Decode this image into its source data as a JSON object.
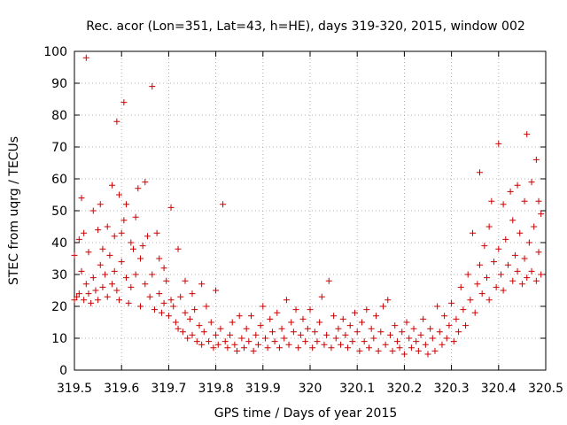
{
  "chart_data": {
    "type": "scatter",
    "title": "Rec. acor (Lon=351, Lat=43, h=HE), days 319-320, 2015, window 002",
    "xlabel": "GPS time / Days of year 2015",
    "ylabel": "STEC from uqrg / TECUs",
    "xlim": [
      319.5,
      320.5
    ],
    "ylim": [
      0,
      100
    ],
    "x_ticks": [
      "319.5",
      "319.6",
      "319.7",
      "319.8",
      "319.9",
      "320",
      "320.1",
      "320.2",
      "320.3",
      "320.4",
      "320.5"
    ],
    "y_ticks": [
      "0",
      "10",
      "20",
      "30",
      "40",
      "50",
      "60",
      "70",
      "80",
      "90",
      "100"
    ],
    "grid": true,
    "legend": "none",
    "marker": "+",
    "color": "#cc0000",
    "points": [
      [
        319.5,
        36
      ],
      [
        319.5,
        22
      ],
      [
        319.505,
        23
      ],
      [
        319.51,
        41
      ],
      [
        319.51,
        24
      ],
      [
        319.515,
        54
      ],
      [
        319.515,
        31
      ],
      [
        319.52,
        43
      ],
      [
        319.52,
        22
      ],
      [
        319.525,
        98
      ],
      [
        319.525,
        27
      ],
      [
        319.53,
        37
      ],
      [
        319.53,
        24
      ],
      [
        319.535,
        21
      ],
      [
        319.54,
        50
      ],
      [
        319.54,
        29
      ],
      [
        319.545,
        25
      ],
      [
        319.55,
        22
      ],
      [
        319.55,
        44
      ],
      [
        319.555,
        33
      ],
      [
        319.555,
        52
      ],
      [
        319.56,
        26
      ],
      [
        319.56,
        38
      ],
      [
        319.565,
        30
      ],
      [
        319.57,
        45
      ],
      [
        319.57,
        23
      ],
      [
        319.575,
        36
      ],
      [
        319.58,
        58
      ],
      [
        319.58,
        27
      ],
      [
        319.585,
        31
      ],
      [
        319.585,
        42
      ],
      [
        319.59,
        78
      ],
      [
        319.59,
        25
      ],
      [
        319.595,
        55
      ],
      [
        319.595,
        22
      ],
      [
        319.6,
        43
      ],
      [
        319.6,
        34
      ],
      [
        319.605,
        84
      ],
      [
        319.605,
        47
      ],
      [
        319.61,
        52
      ],
      [
        319.61,
        29
      ],
      [
        319.615,
        21
      ],
      [
        319.62,
        40
      ],
      [
        319.62,
        26
      ],
      [
        319.625,
        38
      ],
      [
        319.63,
        48
      ],
      [
        319.63,
        30
      ],
      [
        319.635,
        57
      ],
      [
        319.64,
        35
      ],
      [
        319.64,
        20
      ],
      [
        319.645,
        39
      ],
      [
        319.65,
        59
      ],
      [
        319.65,
        27
      ],
      [
        319.655,
        42
      ],
      [
        319.66,
        23
      ],
      [
        319.665,
        89
      ],
      [
        319.665,
        30
      ],
      [
        319.67,
        19
      ],
      [
        319.675,
        43
      ],
      [
        319.68,
        35
      ],
      [
        319.68,
        24
      ],
      [
        319.685,
        18
      ],
      [
        319.69,
        32
      ],
      [
        319.69,
        21
      ],
      [
        319.695,
        28
      ],
      [
        319.7,
        17
      ],
      [
        319.705,
        51
      ],
      [
        319.705,
        22
      ],
      [
        319.71,
        20
      ],
      [
        319.715,
        15
      ],
      [
        319.72,
        38
      ],
      [
        319.72,
        13
      ],
      [
        319.725,
        23
      ],
      [
        319.73,
        12
      ],
      [
        319.735,
        28
      ],
      [
        319.735,
        18
      ],
      [
        319.74,
        10
      ],
      [
        319.745,
        16
      ],
      [
        319.75,
        24
      ],
      [
        319.75,
        11
      ],
      [
        319.755,
        19
      ],
      [
        319.76,
        9
      ],
      [
        319.765,
        14
      ],
      [
        319.77,
        27
      ],
      [
        319.77,
        8
      ],
      [
        319.775,
        12
      ],
      [
        319.78,
        20
      ],
      [
        319.785,
        9
      ],
      [
        319.79,
        15
      ],
      [
        319.795,
        7
      ],
      [
        319.8,
        25
      ],
      [
        319.8,
        11
      ],
      [
        319.805,
        8
      ],
      [
        319.81,
        13
      ],
      [
        319.815,
        52
      ],
      [
        319.82,
        9
      ],
      [
        319.825,
        7
      ],
      [
        319.83,
        11
      ],
      [
        319.835,
        15
      ],
      [
        319.84,
        8
      ],
      [
        319.845,
        6
      ],
      [
        319.85,
        17
      ],
      [
        319.855,
        10
      ],
      [
        319.86,
        7
      ],
      [
        319.865,
        13
      ],
      [
        319.87,
        9
      ],
      [
        319.875,
        17
      ],
      [
        319.88,
        6
      ],
      [
        319.885,
        11
      ],
      [
        319.89,
        8
      ],
      [
        319.895,
        14
      ],
      [
        319.9,
        20
      ],
      [
        319.905,
        10
      ],
      [
        319.91,
        7
      ],
      [
        319.915,
        16
      ],
      [
        319.92,
        12
      ],
      [
        319.925,
        9
      ],
      [
        319.93,
        18
      ],
      [
        319.935,
        7
      ],
      [
        319.94,
        13
      ],
      [
        319.945,
        10
      ],
      [
        319.95,
        22
      ],
      [
        319.955,
        8
      ],
      [
        319.96,
        15
      ],
      [
        319.965,
        12
      ],
      [
        319.97,
        19
      ],
      [
        319.975,
        7
      ],
      [
        319.98,
        11
      ],
      [
        319.985,
        16
      ],
      [
        319.99,
        9
      ],
      [
        319.995,
        13
      ],
      [
        320.0,
        19
      ],
      [
        320.005,
        7
      ],
      [
        320.01,
        12
      ],
      [
        320.015,
        9
      ],
      [
        320.02,
        15
      ],
      [
        320.025,
        23
      ],
      [
        320.03,
        8
      ],
      [
        320.035,
        11
      ],
      [
        320.04,
        28
      ],
      [
        320.045,
        7
      ],
      [
        320.05,
        17
      ],
      [
        320.055,
        10
      ],
      [
        320.06,
        13
      ],
      [
        320.065,
        8
      ],
      [
        320.07,
        16
      ],
      [
        320.075,
        11
      ],
      [
        320.08,
        7
      ],
      [
        320.085,
        14
      ],
      [
        320.09,
        9
      ],
      [
        320.095,
        18
      ],
      [
        320.1,
        12
      ],
      [
        320.105,
        6
      ],
      [
        320.11,
        15
      ],
      [
        320.115,
        9
      ],
      [
        320.12,
        19
      ],
      [
        320.125,
        7
      ],
      [
        320.13,
        13
      ],
      [
        320.135,
        10
      ],
      [
        320.14,
        17
      ],
      [
        320.145,
        6
      ],
      [
        320.15,
        12
      ],
      [
        320.155,
        20
      ],
      [
        320.16,
        8
      ],
      [
        320.165,
        22
      ],
      [
        320.17,
        11
      ],
      [
        320.175,
        6
      ],
      [
        320.18,
        14
      ],
      [
        320.185,
        9
      ],
      [
        320.19,
        7
      ],
      [
        320.195,
        12
      ],
      [
        320.2,
        5
      ],
      [
        320.205,
        15
      ],
      [
        320.21,
        10
      ],
      [
        320.215,
        7
      ],
      [
        320.22,
        13
      ],
      [
        320.225,
        9
      ],
      [
        320.23,
        6
      ],
      [
        320.235,
        11
      ],
      [
        320.24,
        16
      ],
      [
        320.245,
        8
      ],
      [
        320.25,
        5
      ],
      [
        320.255,
        13
      ],
      [
        320.26,
        10
      ],
      [
        320.265,
        6
      ],
      [
        320.27,
        20
      ],
      [
        320.275,
        12
      ],
      [
        320.28,
        8
      ],
      [
        320.285,
        17
      ],
      [
        320.29,
        10
      ],
      [
        320.295,
        14
      ],
      [
        320.3,
        21
      ],
      [
        320.305,
        9
      ],
      [
        320.31,
        16
      ],
      [
        320.315,
        12
      ],
      [
        320.32,
        26
      ],
      [
        320.325,
        19
      ],
      [
        320.33,
        14
      ],
      [
        320.335,
        30
      ],
      [
        320.34,
        22
      ],
      [
        320.345,
        43
      ],
      [
        320.35,
        18
      ],
      [
        320.355,
        27
      ],
      [
        320.36,
        62
      ],
      [
        320.36,
        33
      ],
      [
        320.365,
        24
      ],
      [
        320.37,
        39
      ],
      [
        320.375,
        29
      ],
      [
        320.38,
        45
      ],
      [
        320.38,
        22
      ],
      [
        320.385,
        53
      ],
      [
        320.39,
        34
      ],
      [
        320.395,
        26
      ],
      [
        320.4,
        71
      ],
      [
        320.4,
        38
      ],
      [
        320.405,
        30
      ],
      [
        320.41,
        52
      ],
      [
        320.41,
        25
      ],
      [
        320.415,
        41
      ],
      [
        320.42,
        33
      ],
      [
        320.425,
        56
      ],
      [
        320.43,
        47
      ],
      [
        320.43,
        28
      ],
      [
        320.435,
        36
      ],
      [
        320.44,
        58
      ],
      [
        320.44,
        31
      ],
      [
        320.445,
        43
      ],
      [
        320.45,
        27
      ],
      [
        320.455,
        53
      ],
      [
        320.455,
        35
      ],
      [
        320.46,
        74
      ],
      [
        320.46,
        29
      ],
      [
        320.465,
        40
      ],
      [
        320.47,
        59
      ],
      [
        320.47,
        31
      ],
      [
        320.475,
        45
      ],
      [
        320.48,
        66
      ],
      [
        320.48,
        28
      ],
      [
        320.485,
        53
      ],
      [
        320.485,
        37
      ],
      [
        320.49,
        49
      ],
      [
        320.49,
        30
      ]
    ]
  }
}
